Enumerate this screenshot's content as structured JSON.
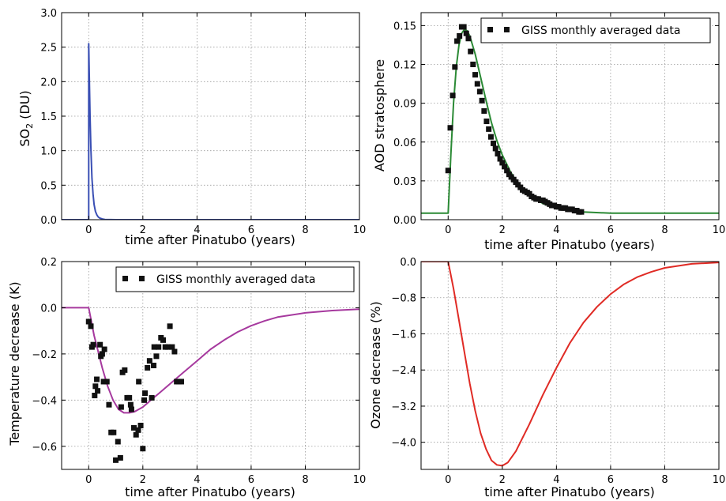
{
  "chart_data": [
    {
      "id": "so2",
      "type": "line",
      "xlabel": "time after Pinatubo (years)",
      "ylabel_prefix": "SO",
      "ylabel_sub": "2",
      "ylabel_suffix": " (DU)",
      "xlim": [
        -1,
        10
      ],
      "ylim": [
        0.0,
        3.0
      ],
      "xticks": [
        0,
        2,
        4,
        6,
        8,
        10
      ],
      "yticks": [
        0.0,
        0.5,
        1.0,
        1.5,
        2.0,
        2.5,
        3.0
      ],
      "ytick_labels": [
        "0.0",
        "0.5",
        "1.0",
        "1.5",
        "2.0",
        "2.5",
        "3.0"
      ],
      "grid": true,
      "series": [
        {
          "color": "#3a4fb4",
          "x": [
            -1,
            0.0,
            0.0,
            0.02,
            0.05,
            0.08,
            0.12,
            0.16,
            0.2,
            0.25,
            0.3,
            0.35,
            0.4,
            0.5,
            0.6,
            0.8,
            1.0,
            2.0,
            4.0,
            10.0
          ],
          "y": [
            0.0,
            0.0,
            2.55,
            2.1,
            1.5,
            1.05,
            0.6,
            0.37,
            0.22,
            0.12,
            0.07,
            0.04,
            0.025,
            0.01,
            0.004,
            0.001,
            0.0,
            0.0,
            0.0,
            0.0
          ]
        }
      ]
    },
    {
      "id": "aod",
      "type": "line+scatter",
      "xlabel": "time after Pinatubo (years)",
      "ylabel": "AOD stratosphere",
      "xlim": [
        -1,
        10
      ],
      "ylim": [
        0.0,
        0.16
      ],
      "xticks": [
        0,
        2,
        4,
        6,
        8,
        10
      ],
      "yticks": [
        0.0,
        0.03,
        0.06,
        0.09,
        0.12,
        0.15
      ],
      "ytick_labels": [
        "0.00",
        "0.03",
        "0.06",
        "0.09",
        "0.12",
        "0.15"
      ],
      "grid": true,
      "legend": {
        "label": "GISS monthly averaged data",
        "position": "top-right"
      },
      "series": [
        {
          "color": "#2b8a35",
          "x": [
            -1,
            0.0,
            0.1,
            0.2,
            0.3,
            0.4,
            0.5,
            0.6,
            0.7,
            0.8,
            1.0,
            1.2,
            1.4,
            1.6,
            1.8,
            2.0,
            2.3,
            2.6,
            3.0,
            3.5,
            4.0,
            4.5,
            5.0,
            6.0,
            8.0,
            10.0
          ],
          "y": [
            0.005,
            0.005,
            0.05,
            0.09,
            0.118,
            0.135,
            0.144,
            0.147,
            0.146,
            0.142,
            0.128,
            0.11,
            0.092,
            0.075,
            0.061,
            0.05,
            0.037,
            0.027,
            0.019,
            0.0125,
            0.009,
            0.007,
            0.006,
            0.005,
            0.005,
            0.005
          ]
        },
        {
          "name": "GISS monthly averaged data",
          "color": "#111111",
          "marker": "square",
          "x": [
            0.0,
            0.08,
            0.17,
            0.25,
            0.33,
            0.42,
            0.5,
            0.58,
            0.67,
            0.75,
            0.83,
            0.92,
            1.0,
            1.08,
            1.17,
            1.25,
            1.33,
            1.42,
            1.5,
            1.58,
            1.67,
            1.75,
            1.83,
            1.92,
            2.0,
            2.08,
            2.17,
            2.25,
            2.33,
            2.42,
            2.5,
            2.58,
            2.67,
            2.75,
            2.83,
            2.92,
            3.0,
            3.08,
            3.17,
            3.25,
            3.33,
            3.42,
            3.5,
            3.58,
            3.67,
            3.75,
            3.83,
            3.92,
            4.0,
            4.08,
            4.17,
            4.25,
            4.33,
            4.42,
            4.5,
            4.58,
            4.67,
            4.75,
            4.83,
            4.92
          ],
          "y": [
            0.038,
            0.071,
            0.096,
            0.118,
            0.138,
            0.142,
            0.149,
            0.149,
            0.144,
            0.14,
            0.13,
            0.12,
            0.112,
            0.105,
            0.099,
            0.092,
            0.084,
            0.076,
            0.07,
            0.064,
            0.059,
            0.055,
            0.051,
            0.047,
            0.044,
            0.041,
            0.038,
            0.035,
            0.033,
            0.031,
            0.029,
            0.027,
            0.025,
            0.023,
            0.022,
            0.021,
            0.02,
            0.018,
            0.017,
            0.016,
            0.016,
            0.015,
            0.015,
            0.014,
            0.013,
            0.012,
            0.011,
            0.011,
            0.01,
            0.01,
            0.009,
            0.009,
            0.009,
            0.008,
            0.008,
            0.008,
            0.007,
            0.007,
            0.006,
            0.006
          ]
        }
      ]
    },
    {
      "id": "temp",
      "type": "line+scatter",
      "xlabel": "time after Pinatubo (years)",
      "ylabel": "Temperature decrease (K)",
      "xlim": [
        -1,
        10
      ],
      "ylim": [
        -0.7,
        0.2
      ],
      "xticks": [
        0,
        2,
        4,
        6,
        8,
        10
      ],
      "yticks": [
        -0.6,
        -0.4,
        -0.2,
        0.0,
        0.2
      ],
      "ytick_labels": [
        "−0.6",
        "−0.4",
        "−0.2",
        "0.0",
        "0.2"
      ],
      "grid": true,
      "legend": {
        "label": "GISS monthly averaged data",
        "position": "top-right"
      },
      "series": [
        {
          "color": "#a6399e",
          "x": [
            -1,
            0.0,
            0.1,
            0.2,
            0.35,
            0.5,
            0.7,
            0.9,
            1.1,
            1.3,
            1.5,
            1.7,
            2.0,
            2.3,
            2.6,
            3.0,
            3.5,
            4.0,
            4.5,
            5.0,
            5.5,
            6.0,
            6.5,
            7.0,
            8.0,
            9.0,
            10.0
          ],
          "y": [
            0.0,
            0.0,
            -0.06,
            -0.12,
            -0.19,
            -0.26,
            -0.34,
            -0.4,
            -0.44,
            -0.455,
            -0.455,
            -0.45,
            -0.43,
            -0.4,
            -0.37,
            -0.33,
            -0.28,
            -0.23,
            -0.18,
            -0.14,
            -0.105,
            -0.078,
            -0.057,
            -0.04,
            -0.022,
            -0.012,
            -0.006
          ]
        },
        {
          "name": "GISS monthly averaged data",
          "color": "#111111",
          "marker": "square",
          "x": [
            0.0,
            0.08,
            0.17,
            0.25,
            0.33,
            0.42,
            0.5,
            0.58,
            0.67,
            0.75,
            0.83,
            0.92,
            1.0,
            1.08,
            1.17,
            1.25,
            1.33,
            1.42,
            1.5,
            1.58,
            1.67,
            1.75,
            1.83,
            1.92,
            2.0,
            2.08,
            2.17,
            2.25,
            2.33,
            2.42,
            2.5,
            2.58,
            2.67,
            2.75,
            2.83,
            2.92,
            3.0,
            3.08,
            3.17,
            3.25,
            3.33,
            3.42,
            0.12,
            0.22,
            0.3,
            0.45,
            0.55,
            1.2,
            1.55,
            1.85,
            2.05,
            2.4
          ],
          "y": [
            -0.06,
            -0.08,
            -0.16,
            -0.34,
            -0.36,
            -0.16,
            -0.2,
            -0.18,
            -0.32,
            -0.42,
            -0.54,
            -0.54,
            -0.66,
            -0.58,
            -0.65,
            -0.28,
            -0.27,
            -0.39,
            -0.39,
            -0.44,
            -0.52,
            -0.55,
            -0.53,
            -0.51,
            -0.61,
            -0.37,
            -0.26,
            -0.23,
            -0.39,
            -0.17,
            -0.21,
            -0.17,
            -0.13,
            -0.14,
            -0.17,
            -0.17,
            -0.08,
            -0.17,
            -0.19,
            -0.32,
            -0.32,
            -0.32,
            -0.17,
            -0.38,
            -0.31,
            -0.21,
            -0.32,
            -0.43,
            -0.42,
            -0.32,
            -0.4,
            -0.25
          ]
        }
      ]
    },
    {
      "id": "ozone",
      "type": "line",
      "xlabel": "time after Pinatubo (years)",
      "ylabel": "Ozone decrease (%)",
      "xlim": [
        -1,
        10
      ],
      "ylim": [
        -4.6,
        0.0
      ],
      "xticks": [
        0,
        2,
        4,
        6,
        8,
        10
      ],
      "yticks": [
        -4.0,
        -3.2,
        -2.4,
        -1.6,
        -0.8,
        0.0
      ],
      "ytick_labels": [
        "−4.0",
        "−3.2",
        "−2.4",
        "−1.6",
        "−0.8",
        "0.0"
      ],
      "grid": true,
      "series": [
        {
          "color": "#e02b25",
          "x": [
            -1,
            0.0,
            0.2,
            0.4,
            0.6,
            0.8,
            1.0,
            1.2,
            1.4,
            1.6,
            1.8,
            2.0,
            2.2,
            2.5,
            3.0,
            3.5,
            4.0,
            4.5,
            5.0,
            5.5,
            6.0,
            6.5,
            7.0,
            7.5,
            8.0,
            9.0,
            10.0
          ],
          "y": [
            0.0,
            0.0,
            -0.6,
            -1.3,
            -2.0,
            -2.7,
            -3.3,
            -3.8,
            -4.15,
            -4.4,
            -4.5,
            -4.52,
            -4.45,
            -4.2,
            -3.6,
            -2.95,
            -2.35,
            -1.8,
            -1.35,
            -1.0,
            -0.72,
            -0.5,
            -0.34,
            -0.23,
            -0.14,
            -0.05,
            -0.02
          ]
        }
      ]
    }
  ]
}
